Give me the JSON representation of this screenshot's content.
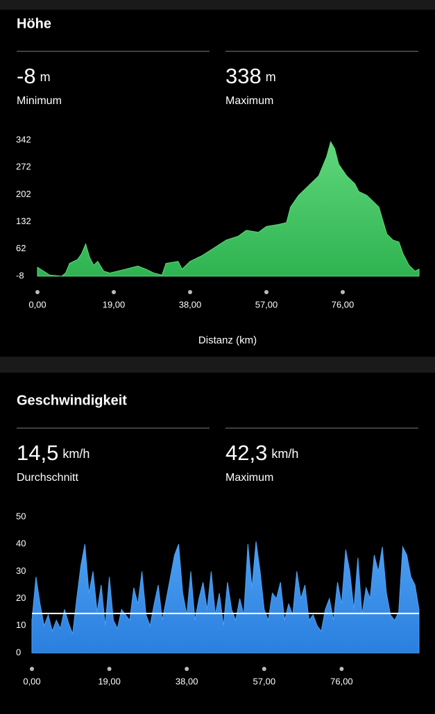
{
  "panels": [
    {
      "title": "Höhe",
      "stats": [
        {
          "value": "-8",
          "unit": "m",
          "label": "Minimum"
        },
        {
          "value": "338",
          "unit": "m",
          "label": "Maximum"
        }
      ]
    },
    {
      "title": "Geschwindigkeit",
      "stats": [
        {
          "value": "14,5",
          "unit": "km/h",
          "label": "Durchschnitt"
        },
        {
          "value": "42,3",
          "unit": "km/h",
          "label": "Maximum"
        }
      ]
    }
  ],
  "chart_data": [
    {
      "type": "area",
      "x_label": "Distanz (km)",
      "color": "#2fb351",
      "color_top": "#5fd77b",
      "x": [
        0,
        1.5,
        3,
        6,
        7,
        8,
        10,
        11,
        12,
        13,
        14,
        15,
        16.5,
        18,
        20,
        22,
        25,
        27,
        29,
        31,
        32,
        35,
        36,
        38,
        41,
        44,
        47,
        50,
        52,
        55,
        57,
        60,
        62,
        63,
        65,
        67,
        70,
        72,
        73,
        74,
        75,
        77,
        79,
        80,
        82,
        85,
        87,
        88.5,
        90,
        91,
        92.5,
        94,
        95
      ],
      "values": [
        15,
        5,
        -5,
        -8,
        0,
        25,
        35,
        50,
        75,
        40,
        20,
        30,
        5,
        0,
        5,
        10,
        18,
        10,
        0,
        -5,
        25,
        30,
        10,
        30,
        45,
        65,
        85,
        95,
        110,
        105,
        120,
        125,
        130,
        170,
        200,
        220,
        250,
        300,
        338,
        320,
        280,
        250,
        230,
        210,
        200,
        170,
        100,
        85,
        80,
        50,
        20,
        5,
        10
      ],
      "xlim": [
        0,
        95
      ],
      "ylim": [
        -8,
        342
      ],
      "yticks": [
        -8,
        62,
        132,
        202,
        272,
        342
      ],
      "xticks": [
        {
          "value": 0,
          "label": "0,00"
        },
        {
          "value": 19,
          "label": "19,00"
        },
        {
          "value": 38,
          "label": "38,00"
        },
        {
          "value": 57,
          "label": "57,00"
        },
        {
          "value": 76,
          "label": "76,00"
        }
      ]
    },
    {
      "type": "area",
      "color": "#2a7fe0",
      "color_top": "#4d9ff0",
      "mean_line": 14.5,
      "mean_color": "#ffffff",
      "x": [
        0,
        1,
        2,
        3,
        4,
        5,
        6,
        7,
        8,
        9,
        10,
        11,
        12,
        13,
        14,
        15,
        16,
        17,
        18,
        19,
        20,
        21,
        22,
        23,
        24,
        25,
        26,
        27,
        28,
        29,
        30,
        31,
        32,
        33,
        34,
        35,
        36,
        37,
        38,
        39,
        40,
        41,
        42,
        43,
        44,
        45,
        46,
        47,
        48,
        49,
        50,
        51,
        52,
        53,
        54,
        55,
        56,
        57,
        58,
        59,
        60,
        61,
        62,
        63,
        64,
        65,
        66,
        67,
        68,
        69,
        70,
        71,
        72,
        73,
        74,
        75,
        76,
        77,
        78,
        79,
        80,
        81,
        82,
        83,
        84,
        85,
        86,
        87,
        88,
        89,
        90,
        91,
        92,
        93,
        94,
        95
      ],
      "values": [
        12,
        28,
        18,
        10,
        14,
        8,
        12,
        9,
        16,
        11,
        7,
        20,
        32,
        40,
        22,
        30,
        15,
        25,
        10,
        28,
        12,
        9,
        16,
        14,
        12,
        24,
        18,
        30,
        14,
        10,
        18,
        25,
        12,
        20,
        28,
        36,
        40,
        22,
        14,
        30,
        12,
        20,
        26,
        16,
        30,
        14,
        22,
        10,
        26,
        16,
        12,
        20,
        14,
        40,
        24,
        41,
        30,
        16,
        12,
        22,
        20,
        26,
        12,
        18,
        14,
        30,
        20,
        25,
        12,
        14,
        10,
        8,
        16,
        20,
        12,
        26,
        18,
        38,
        30,
        16,
        35,
        14,
        24,
        20,
        36,
        30,
        39,
        22,
        14,
        12,
        15,
        39,
        36,
        28,
        25,
        16
      ],
      "xlim": [
        0,
        95
      ],
      "ylim": [
        0,
        50
      ],
      "yticks": [
        0,
        10,
        20,
        30,
        40,
        50
      ],
      "xticks": [
        {
          "value": 0,
          "label": "0,00"
        },
        {
          "value": 19,
          "label": "19,00"
        },
        {
          "value": 38,
          "label": "38,00"
        },
        {
          "value": 57,
          "label": "57,00"
        },
        {
          "value": 76,
          "label": "76,00"
        }
      ]
    }
  ]
}
